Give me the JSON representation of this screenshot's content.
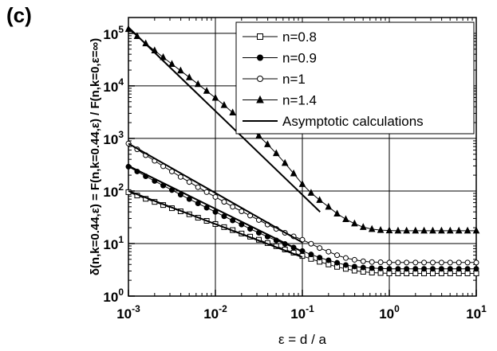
{
  "panel_label": "(c)",
  "chart_data": {
    "type": "line",
    "title": "",
    "xlabel": "ε = d / a",
    "ylabel": "δ(n,k=0.44,ε) = F(n,k=0.44,ε) / F(n,k=0,ε=∞)",
    "x_scale": "log",
    "y_scale": "log",
    "xlim": [
      0.001,
      10
    ],
    "ylim": [
      1,
      200000
    ],
    "x_ticks": [
      "10-3",
      "10-2",
      "10-1",
      "100",
      "101"
    ],
    "y_ticks": [
      "100",
      "101",
      "102",
      "103",
      "104",
      "105"
    ],
    "grid": true,
    "legend_position": "top-right",
    "series": [
      {
        "name": "n=0.8",
        "marker": "open-square",
        "x": [
          0.001,
          0.00126,
          0.00158,
          0.002,
          0.00251,
          0.00316,
          0.00398,
          0.00501,
          0.00631,
          0.00794,
          0.01,
          0.0126,
          0.0158,
          0.02,
          0.0251,
          0.0316,
          0.0398,
          0.0501,
          0.0631,
          0.0794,
          0.1,
          0.126,
          0.158,
          0.2,
          0.251,
          0.316,
          0.398,
          0.501,
          0.631,
          0.794,
          1,
          1.26,
          1.58,
          2,
          2.51,
          3.16,
          3.98,
          5.01,
          6.31,
          7.94,
          10
        ],
        "y": [
          95,
          82,
          71,
          62,
          54,
          47,
          41,
          36,
          31,
          27,
          23.5,
          20.5,
          18,
          15.5,
          13.5,
          11.8,
          10.2,
          8.9,
          7.7,
          6.7,
          5.8,
          5.1,
          4.5,
          4.0,
          3.6,
          3.3,
          3.05,
          2.9,
          2.8,
          2.75,
          2.7,
          2.7,
          2.7,
          2.7,
          2.7,
          2.7,
          2.7,
          2.7,
          2.7,
          2.7,
          2.7
        ]
      },
      {
        "name": "n=0.9",
        "marker": "filled-circle",
        "x": [
          0.001,
          0.00126,
          0.00158,
          0.002,
          0.00251,
          0.00316,
          0.00398,
          0.00501,
          0.00631,
          0.00794,
          0.01,
          0.0126,
          0.0158,
          0.02,
          0.0251,
          0.0316,
          0.0398,
          0.0501,
          0.0631,
          0.0794,
          0.1,
          0.126,
          0.158,
          0.2,
          0.251,
          0.316,
          0.398,
          0.501,
          0.631,
          0.794,
          1,
          1.26,
          1.58,
          2,
          2.51,
          3.16,
          3.98,
          5.01,
          6.31,
          7.94,
          10
        ],
        "y": [
          290,
          235,
          190,
          155,
          127,
          104,
          85,
          70,
          58,
          48,
          40,
          33,
          27.5,
          23,
          19,
          16,
          13.5,
          11.5,
          9.8,
          8.4,
          7.2,
          6.2,
          5.4,
          4.8,
          4.3,
          3.9,
          3.65,
          3.5,
          3.4,
          3.35,
          3.3,
          3.3,
          3.3,
          3.3,
          3.3,
          3.3,
          3.3,
          3.3,
          3.3,
          3.3,
          3.3
        ]
      },
      {
        "name": "n=1",
        "marker": "open-circle",
        "x": [
          0.001,
          0.00126,
          0.00158,
          0.002,
          0.00251,
          0.00316,
          0.00398,
          0.00501,
          0.00631,
          0.00794,
          0.01,
          0.0126,
          0.0158,
          0.02,
          0.0251,
          0.0316,
          0.0398,
          0.0501,
          0.0631,
          0.0794,
          0.1,
          0.126,
          0.158,
          0.2,
          0.251,
          0.316,
          0.398,
          0.501,
          0.631,
          0.794,
          1,
          1.26,
          1.58,
          2,
          2.51,
          3.16,
          3.98,
          5.01,
          6.31,
          7.94,
          10
        ],
        "y": [
          800,
          620,
          480,
          375,
          295,
          235,
          185,
          148,
          118,
          95,
          77,
          62,
          50,
          41,
          34,
          28,
          23,
          19,
          16,
          13.7,
          11.8,
          9.9,
          8.2,
          7.0,
          6.0,
          5.3,
          4.9,
          4.6,
          4.45,
          4.4,
          4.35,
          4.35,
          4.35,
          4.35,
          4.35,
          4.35,
          4.35,
          4.35,
          4.35,
          4.35,
          4.35
        ]
      },
      {
        "name": "n=1.4",
        "marker": "filled-triangle",
        "x": [
          0.001,
          0.00126,
          0.00158,
          0.002,
          0.00251,
          0.00316,
          0.00398,
          0.00501,
          0.00631,
          0.00794,
          0.01,
          0.0126,
          0.0158,
          0.02,
          0.0251,
          0.0316,
          0.0398,
          0.0501,
          0.0631,
          0.0794,
          0.1,
          0.126,
          0.158,
          0.2,
          0.251,
          0.316,
          0.398,
          0.501,
          0.631,
          0.794,
          1,
          1.26,
          1.58,
          2,
          2.51,
          3.16,
          3.98,
          5.01,
          6.31,
          7.94,
          10
        ],
        "y": [
          120000,
          88000,
          64000,
          47000,
          35000,
          26000,
          19500,
          14500,
          10800,
          8000,
          5900,
          4300,
          3100,
          2250,
          1600,
          1120,
          770,
          520,
          340,
          215,
          135,
          92,
          67,
          50,
          37,
          29,
          24,
          20.5,
          18.8,
          18,
          17.7,
          17.5,
          17.5,
          17.5,
          17.5,
          17.5,
          17.5,
          17.5,
          17.5,
          17.5,
          17.5
        ]
      },
      {
        "name": "Asymptotic calculations",
        "marker": "none",
        "lines": [
          {
            "x": [
              0.001,
              0.1
            ],
            "y": [
              100,
              5.5
            ]
          },
          {
            "x": [
              0.001,
              0.1
            ],
            "y": [
              300,
              7.0
            ]
          },
          {
            "x": [
              0.001,
              0.1
            ],
            "y": [
              800,
              10.5
            ]
          },
          {
            "x": [
              0.001,
              0.16
            ],
            "y": [
              130000,
              40
            ]
          }
        ]
      }
    ]
  }
}
